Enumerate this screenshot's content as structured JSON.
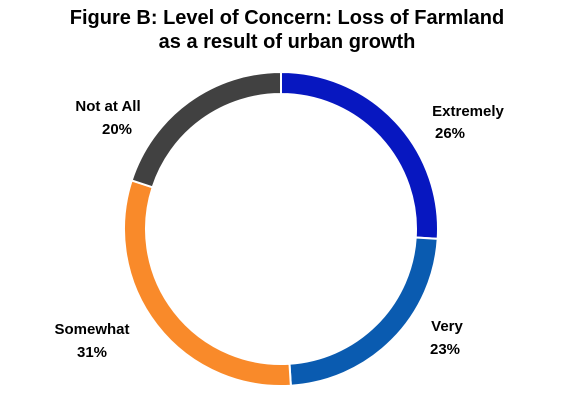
{
  "chart_data": {
    "type": "pie",
    "variant": "donut",
    "title_lines": [
      "Figure B: Level of Concern: Loss of Farmland",
      "as a result of urban growth"
    ],
    "slices": [
      {
        "label": "Extremely",
        "value": 26,
        "value_label": "26%",
        "color": "#0717C0"
      },
      {
        "label": "Very",
        "value": 23,
        "value_label": "23%",
        "color": "#0A5BB0"
      },
      {
        "label": "Somewhat",
        "value": 31,
        "value_label": "31%",
        "color": "#F98A2A"
      },
      {
        "label": "Not at All",
        "value": 20,
        "value_label": "20%",
        "color": "#414141"
      }
    ],
    "start": "top",
    "direction": "clockwise",
    "legend": "none"
  }
}
